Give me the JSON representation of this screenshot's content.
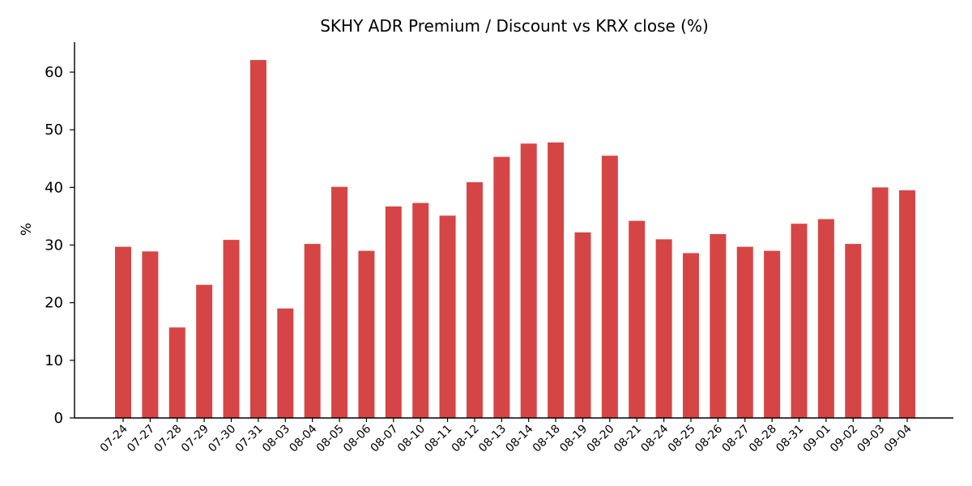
{
  "chart_data": {
    "type": "bar",
    "title": "SKHY ADR Premium / Discount vs KRX close (%)",
    "xlabel": "",
    "ylabel": "%",
    "ylim": [
      0,
      65
    ],
    "yticks": [
      0,
      10,
      20,
      30,
      40,
      50,
      60
    ],
    "grid": false,
    "legend": "none",
    "bar_color": "#d64545",
    "categories": [
      "07-24",
      "07-27",
      "07-28",
      "07-29",
      "07-30",
      "07-31",
      "08-03",
      "08-04",
      "08-05",
      "08-06",
      "08-07",
      "08-10",
      "08-11",
      "08-12",
      "08-13",
      "08-14",
      "08-18",
      "08-19",
      "08-20",
      "08-21",
      "08-24",
      "08-25",
      "08-26",
      "08-27",
      "08-28",
      "08-31",
      "09-01",
      "09-02",
      "09-03",
      "09-04"
    ],
    "values": [
      29.7,
      28.9,
      15.7,
      23.1,
      30.9,
      62.1,
      19.0,
      30.2,
      40.1,
      29.0,
      36.7,
      37.3,
      35.1,
      40.9,
      45.3,
      47.6,
      47.8,
      32.2,
      45.5,
      34.2,
      31.0,
      28.6,
      31.9,
      29.7,
      29.0,
      33.7,
      34.5,
      30.2,
      40.0,
      39.5
    ]
  }
}
